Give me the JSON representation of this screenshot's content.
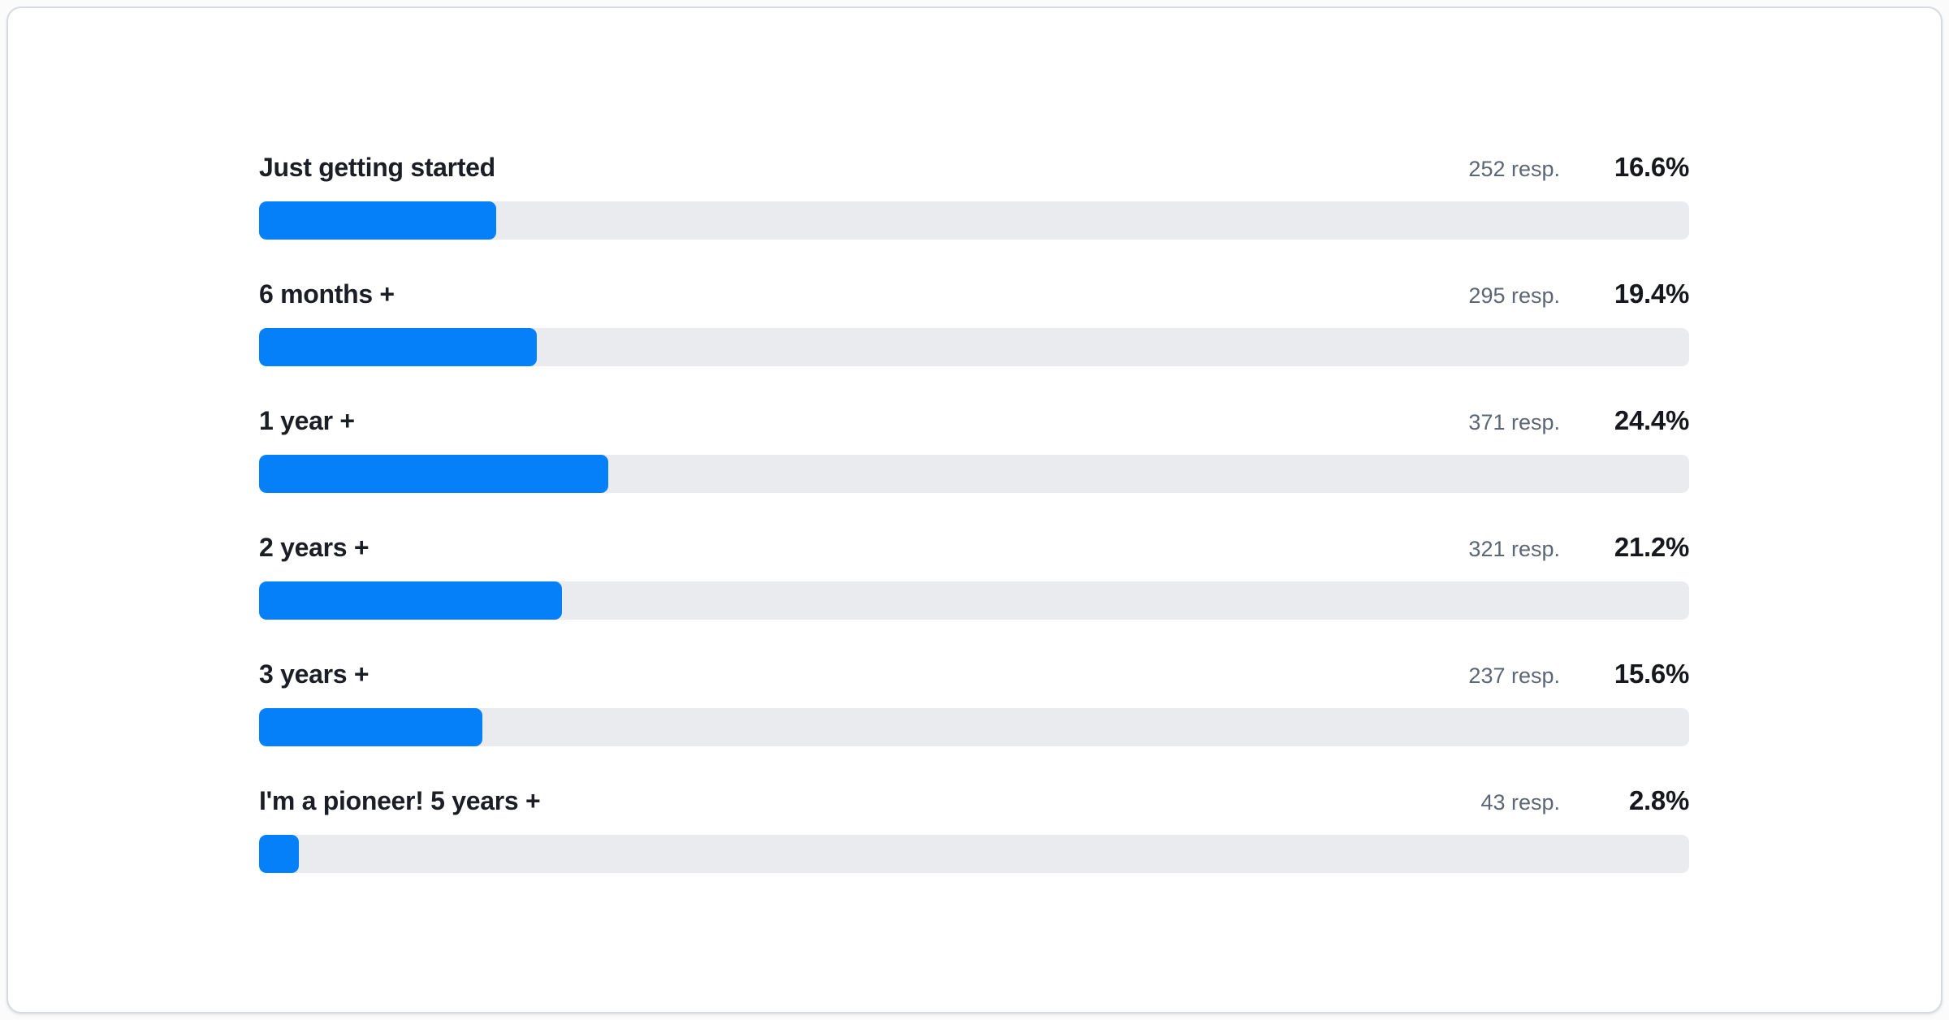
{
  "colors": {
    "bar_fill": "#0580f8",
    "bar_track": "#e9ebef",
    "label_text": "#1b1e24",
    "responses_text": "#5c6675",
    "percent_text": "#16181d",
    "card_border": "#d7dade",
    "card_background": "#ffffff"
  },
  "chart_data": {
    "type": "bar",
    "orientation": "horizontal",
    "title": "",
    "xlabel": "",
    "ylabel": "",
    "value_unit": "%",
    "axis_range": [
      0,
      100
    ],
    "grid": false,
    "legend": false,
    "categories": [
      "Just getting started",
      "6 months +",
      "1 year +",
      "2 years +",
      "3 years +",
      "I'm a pioneer! 5 years +"
    ],
    "values": [
      16.6,
      19.4,
      24.4,
      21.2,
      15.6,
      2.8
    ],
    "response_counts": [
      252,
      295,
      371,
      321,
      237,
      43
    ],
    "rows": [
      {
        "label": "Just getting started",
        "responses_label": "252 resp.",
        "percent": 16.6,
        "percent_label": "16.6%"
      },
      {
        "label": "6 months +",
        "responses_label": "295 resp.",
        "percent": 19.4,
        "percent_label": "19.4%"
      },
      {
        "label": "1 year +",
        "responses_label": "371 resp.",
        "percent": 24.4,
        "percent_label": "24.4%"
      },
      {
        "label": "2 years +",
        "responses_label": "321 resp.",
        "percent": 21.2,
        "percent_label": "21.2%"
      },
      {
        "label": "3 years +",
        "responses_label": "237 resp.",
        "percent": 15.6,
        "percent_label": "15.6%"
      },
      {
        "label": "I'm a pioneer! 5 years +",
        "responses_label": "43 resp.",
        "percent": 2.8,
        "percent_label": "2.8%"
      }
    ]
  }
}
